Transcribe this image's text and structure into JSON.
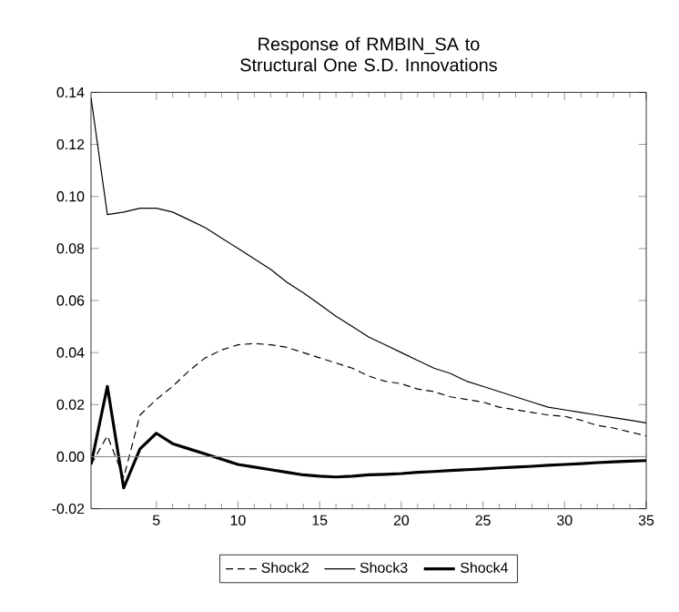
{
  "chart_data": {
    "type": "line",
    "title": "Response of RMBIN_SA to Structural One S.D. Innovations",
    "x": [
      1,
      2,
      3,
      4,
      5,
      6,
      7,
      8,
      9,
      10,
      11,
      12,
      13,
      14,
      15,
      16,
      17,
      18,
      19,
      20,
      21,
      22,
      23,
      24,
      25,
      26,
      27,
      28,
      29,
      30,
      31,
      32,
      33,
      34,
      35
    ],
    "series": [
      {
        "name": "Shock2",
        "color": "#000000",
        "line_style": "dashed",
        "values": [
          -0.003,
          0.008,
          -0.008,
          0.016,
          0.022,
          0.027,
          0.033,
          0.038,
          0.041,
          0.043,
          0.0435,
          0.043,
          0.042,
          0.04,
          0.038,
          0.036,
          0.034,
          0.031,
          0.029,
          0.028,
          0.026,
          0.025,
          0.023,
          0.022,
          0.021,
          0.019,
          0.018,
          0.017,
          0.016,
          0.0155,
          0.014,
          0.012,
          0.011,
          0.0095,
          0.008
        ]
      },
      {
        "name": "Shock3",
        "color": "#000000",
        "line_style": "solid",
        "values": [
          0.138,
          0.093,
          0.094,
          0.0955,
          0.0955,
          0.094,
          0.091,
          0.088,
          0.084,
          0.08,
          0.076,
          0.072,
          0.067,
          0.063,
          0.0585,
          0.054,
          0.05,
          0.046,
          0.043,
          0.04,
          0.037,
          0.034,
          0.032,
          0.029,
          0.027,
          0.025,
          0.023,
          0.021,
          0.019,
          0.018,
          0.017,
          0.016,
          0.015,
          0.014,
          0.013
        ]
      },
      {
        "name": "Shock4",
        "color": "#000000",
        "line_style": "solid",
        "values": [
          -0.003,
          0.027,
          -0.012,
          0.003,
          0.009,
          0.005,
          0.003,
          0.001,
          -0.001,
          -0.003,
          -0.004,
          -0.005,
          -0.006,
          -0.007,
          -0.0075,
          -0.0078,
          -0.0075,
          -0.007,
          -0.0068,
          -0.0065,
          -0.006,
          -0.0057,
          -0.0053,
          -0.005,
          -0.0047,
          -0.0043,
          -0.004,
          -0.0037,
          -0.0033,
          -0.003,
          -0.0027,
          -0.0023,
          -0.002,
          -0.0017,
          -0.0015
        ]
      }
    ],
    "xlim": [
      1,
      35
    ],
    "xticks": [
      5,
      10,
      15,
      20,
      25,
      30,
      35
    ],
    "ylim": [
      -0.02,
      0.14
    ],
    "yticks": [
      {
        "value": -0.02,
        "label": "-0.02"
      },
      {
        "value": 0.0,
        "label": "0.00"
      },
      {
        "value": 0.02,
        "label": "0.02"
      },
      {
        "value": 0.04,
        "label": "0.04"
      },
      {
        "value": 0.06,
        "label": "0.06"
      },
      {
        "value": 0.08,
        "label": "0.08"
      },
      {
        "value": 0.1,
        "label": "0.10"
      },
      {
        "value": 0.12,
        "label": "0.12"
      },
      {
        "value": 0.14,
        "label": "0.14"
      }
    ],
    "ref_lines": [
      {
        "axis": "y",
        "value": 0,
        "color": "#808080"
      }
    ],
    "legend": "bottom",
    "grid": false,
    "marker": "none"
  }
}
